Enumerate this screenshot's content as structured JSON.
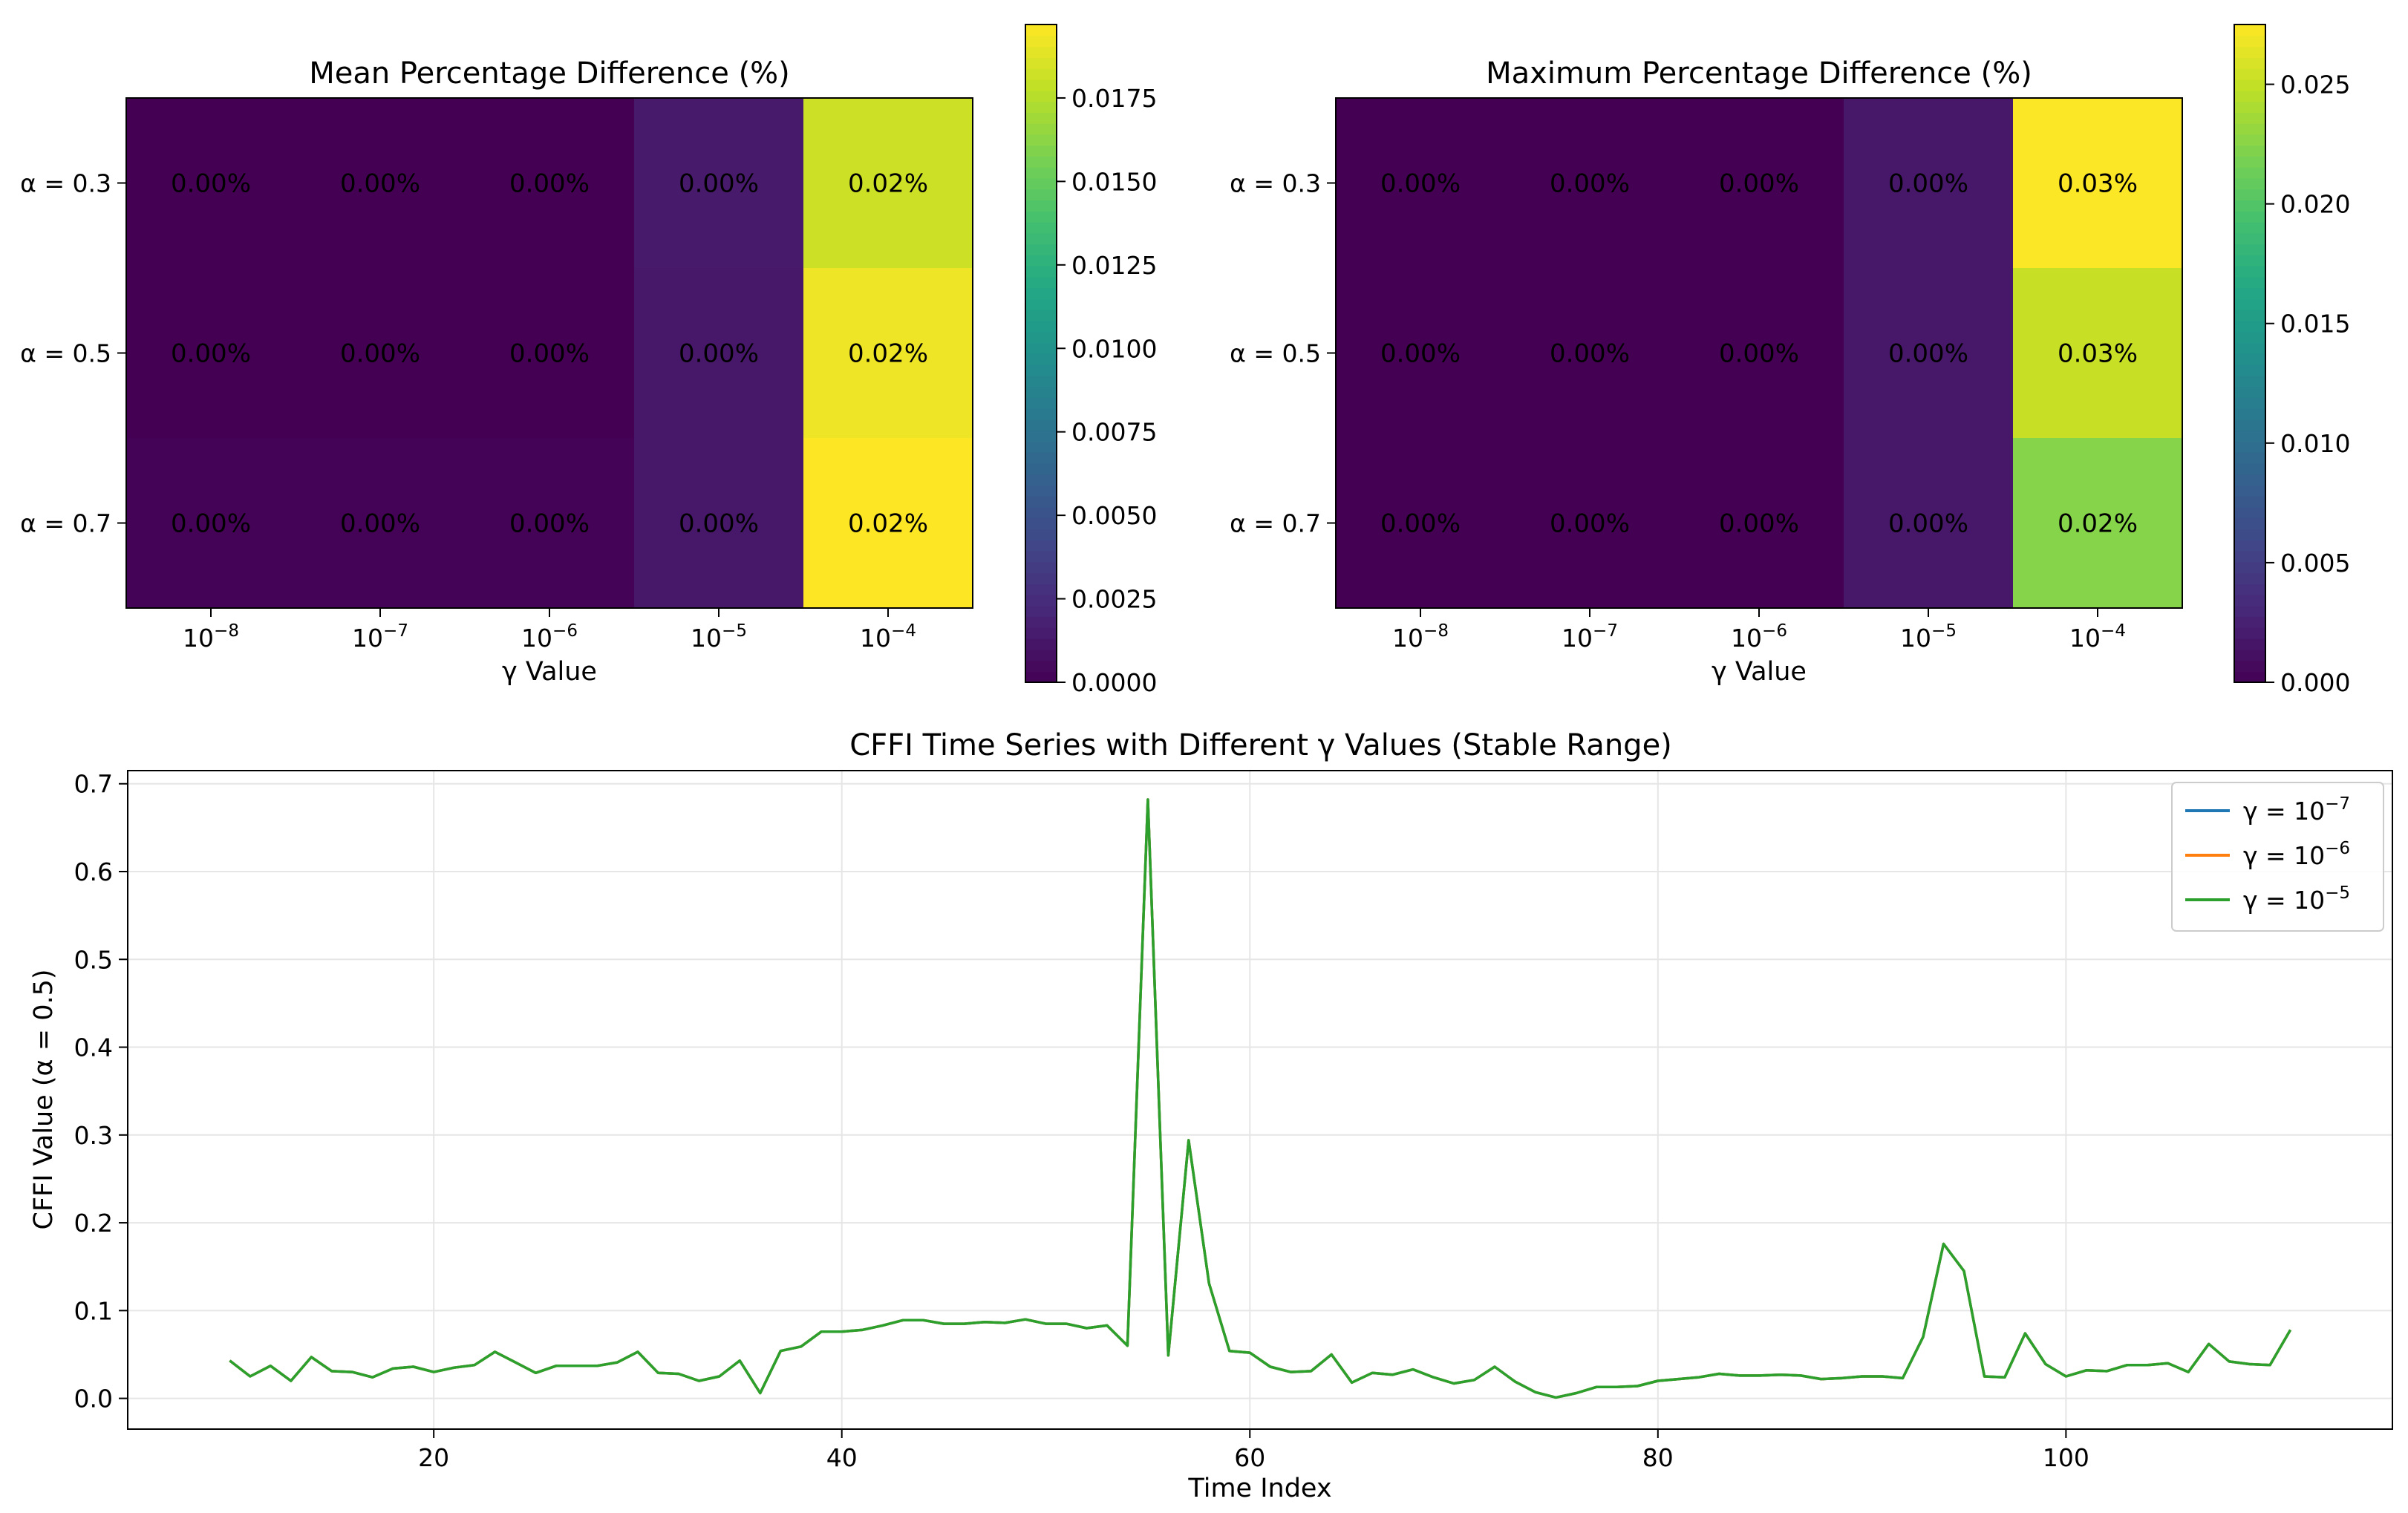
{
  "chart_data": [
    {
      "type": "heatmap",
      "title": "Mean Percentage Difference (%)",
      "xlabel": "γ Value",
      "ylabel": "",
      "x_ticks": [
        {
          "base": "10",
          "exp": "−8"
        },
        {
          "base": "10",
          "exp": "−7"
        },
        {
          "base": "10",
          "exp": "−6"
        },
        {
          "base": "10",
          "exp": "−5"
        },
        {
          "base": "10",
          "exp": "−4"
        }
      ],
      "y_ticks": [
        "α = 0.3",
        "α = 0.5",
        "α = 0.7"
      ],
      "values": [
        [
          0.0,
          0.0,
          0.0,
          0.0014,
          0.0182
        ],
        [
          0.0,
          0.0,
          0.0,
          0.0013,
          0.0192
        ],
        [
          0.0001,
          0.0001,
          0.0001,
          0.0013,
          0.0197
        ]
      ],
      "labels": [
        [
          "0.00%",
          "0.00%",
          "0.00%",
          "0.00%",
          "0.02%"
        ],
        [
          "0.00%",
          "0.00%",
          "0.00%",
          "0.00%",
          "0.02%"
        ],
        [
          "0.00%",
          "0.00%",
          "0.00%",
          "0.00%",
          "0.02%"
        ]
      ],
      "colormap": "viridis",
      "vmin": 0.0,
      "vmax": 0.0197,
      "colorbar_ticks": [
        "0.0000",
        "0.0025",
        "0.0050",
        "0.0075",
        "0.0100",
        "0.0125",
        "0.0150",
        "0.0175"
      ],
      "colorbar_tick_values": [
        0.0,
        0.0025,
        0.005,
        0.0075,
        0.01,
        0.0125,
        0.015,
        0.0175
      ]
    },
    {
      "type": "heatmap",
      "title": "Maximum Percentage Difference (%)",
      "xlabel": "γ Value",
      "ylabel": "",
      "x_ticks": [
        {
          "base": "10",
          "exp": "−8"
        },
        {
          "base": "10",
          "exp": "−7"
        },
        {
          "base": "10",
          "exp": "−6"
        },
        {
          "base": "10",
          "exp": "−5"
        },
        {
          "base": "10",
          "exp": "−4"
        }
      ],
      "y_ticks": [
        "α = 0.3",
        "α = 0.5",
        "α = 0.7"
      ],
      "values": [
        [
          0.0,
          0.0,
          0.0,
          0.0018,
          0.0274
        ],
        [
          0.0,
          0.0,
          0.0,
          0.0018,
          0.0252
        ],
        [
          0.0,
          0.0,
          0.0,
          0.0018,
          0.0225
        ]
      ],
      "labels": [
        [
          "0.00%",
          "0.00%",
          "0.00%",
          "0.00%",
          "0.03%"
        ],
        [
          "0.00%",
          "0.00%",
          "0.00%",
          "0.00%",
          "0.03%"
        ],
        [
          "0.00%",
          "0.00%",
          "0.00%",
          "0.00%",
          "0.02%"
        ]
      ],
      "colormap": "viridis",
      "vmin": 0.0,
      "vmax": 0.0275,
      "colorbar_ticks": [
        "0.000",
        "0.005",
        "0.010",
        "0.015",
        "0.020",
        "0.025"
      ],
      "colorbar_tick_values": [
        0.0,
        0.005,
        0.01,
        0.015,
        0.02,
        0.025
      ]
    },
    {
      "type": "line",
      "title": "CFFI Time Series with Different γ Values (Stable Range)",
      "xlabel": "Time Index",
      "ylabel": "CFFI Value (α = 0.5)",
      "xlim": [
        5,
        116
      ],
      "ylim": [
        -0.035,
        0.715
      ],
      "x_ticks": [
        20,
        40,
        60,
        80,
        100
      ],
      "y_ticks": [
        "0.0",
        "0.1",
        "0.2",
        "0.3",
        "0.4",
        "0.5",
        "0.6",
        "0.7"
      ],
      "y_tick_values": [
        0.0,
        0.1,
        0.2,
        0.3,
        0.4,
        0.5,
        0.6,
        0.7
      ],
      "grid": true,
      "legend_position": "top-right",
      "x": [
        10,
        11,
        12,
        13,
        14,
        15,
        16,
        17,
        18,
        19,
        20,
        21,
        22,
        23,
        24,
        25,
        26,
        27,
        28,
        29,
        30,
        31,
        32,
        33,
        34,
        35,
        36,
        37,
        38,
        39,
        40,
        41,
        42,
        43,
        44,
        45,
        46,
        47,
        48,
        49,
        50,
        51,
        52,
        53,
        54,
        55,
        56,
        57,
        58,
        59,
        60,
        61,
        62,
        63,
        64,
        65,
        66,
        67,
        68,
        69,
        70,
        71,
        72,
        73,
        74,
        75,
        76,
        77,
        78,
        79,
        80,
        81,
        82,
        83,
        84,
        85,
        86,
        87,
        88,
        89,
        90,
        91,
        92,
        93,
        94,
        95,
        96,
        97,
        98,
        99,
        100,
        101,
        102,
        103,
        104,
        105,
        106,
        107,
        108,
        109,
        110,
        111
      ],
      "series": [
        {
          "name": "γ = 10⁻⁷",
          "label_base": "γ = 10",
          "label_exp": "−7",
          "color": "#1f77b4",
          "values": [
            0.043,
            0.025,
            0.037,
            0.02,
            0.047,
            0.031,
            0.03,
            0.024,
            0.034,
            0.036,
            0.03,
            0.035,
            0.038,
            0.053,
            0.041,
            0.029,
            0.037,
            0.037,
            0.037,
            0.041,
            0.053,
            0.029,
            0.028,
            0.02,
            0.025,
            0.043,
            0.006,
            0.054,
            0.059,
            0.076,
            0.076,
            0.078,
            0.083,
            0.089,
            0.089,
            0.085,
            0.085,
            0.087,
            0.086,
            0.09,
            0.085,
            0.085,
            0.08,
            0.083,
            0.06,
            0.682,
            0.049,
            0.294,
            0.131,
            0.054,
            0.052,
            0.036,
            0.03,
            0.031,
            0.05,
            0.018,
            0.029,
            0.027,
            0.033,
            0.024,
            0.017,
            0.021,
            0.036,
            0.019,
            0.007,
            0.001,
            0.006,
            0.013,
            0.013,
            0.014,
            0.02,
            0.022,
            0.024,
            0.028,
            0.026,
            0.026,
            0.027,
            0.026,
            0.022,
            0.023,
            0.025,
            0.025,
            0.023,
            0.07,
            0.176,
            0.145,
            0.025,
            0.024,
            0.074,
            0.039,
            0.025,
            0.032,
            0.031,
            0.038,
            0.038,
            0.04,
            0.03,
            0.062,
            0.042,
            0.039,
            0.038,
            0.078
          ]
        },
        {
          "name": "γ = 10⁻⁶",
          "label_base": "γ = 10",
          "label_exp": "−6",
          "color": "#ff7f0e",
          "values": [
            0.043,
            0.025,
            0.037,
            0.02,
            0.047,
            0.031,
            0.03,
            0.024,
            0.034,
            0.036,
            0.03,
            0.035,
            0.038,
            0.053,
            0.041,
            0.029,
            0.037,
            0.037,
            0.037,
            0.041,
            0.053,
            0.029,
            0.028,
            0.02,
            0.025,
            0.043,
            0.006,
            0.054,
            0.059,
            0.076,
            0.076,
            0.078,
            0.083,
            0.089,
            0.089,
            0.085,
            0.085,
            0.087,
            0.086,
            0.09,
            0.085,
            0.085,
            0.08,
            0.083,
            0.06,
            0.682,
            0.049,
            0.294,
            0.131,
            0.054,
            0.052,
            0.036,
            0.03,
            0.031,
            0.05,
            0.018,
            0.029,
            0.027,
            0.033,
            0.024,
            0.017,
            0.021,
            0.036,
            0.019,
            0.007,
            0.001,
            0.006,
            0.013,
            0.013,
            0.014,
            0.02,
            0.022,
            0.024,
            0.028,
            0.026,
            0.026,
            0.027,
            0.026,
            0.022,
            0.023,
            0.025,
            0.025,
            0.023,
            0.07,
            0.176,
            0.145,
            0.025,
            0.024,
            0.074,
            0.039,
            0.025,
            0.032,
            0.031,
            0.038,
            0.038,
            0.04,
            0.03,
            0.062,
            0.042,
            0.039,
            0.038,
            0.078
          ]
        },
        {
          "name": "γ = 10⁻⁵",
          "label_base": "γ = 10",
          "label_exp": "−5",
          "color": "#2ca02c",
          "values": [
            0.043,
            0.025,
            0.037,
            0.02,
            0.047,
            0.031,
            0.03,
            0.024,
            0.034,
            0.036,
            0.03,
            0.035,
            0.038,
            0.053,
            0.041,
            0.029,
            0.037,
            0.037,
            0.037,
            0.041,
            0.053,
            0.029,
            0.028,
            0.02,
            0.025,
            0.043,
            0.006,
            0.054,
            0.059,
            0.076,
            0.076,
            0.078,
            0.083,
            0.089,
            0.089,
            0.085,
            0.085,
            0.087,
            0.086,
            0.09,
            0.085,
            0.085,
            0.08,
            0.083,
            0.06,
            0.682,
            0.049,
            0.294,
            0.131,
            0.054,
            0.052,
            0.036,
            0.03,
            0.031,
            0.05,
            0.018,
            0.029,
            0.027,
            0.033,
            0.024,
            0.017,
            0.021,
            0.036,
            0.019,
            0.007,
            0.001,
            0.006,
            0.013,
            0.013,
            0.014,
            0.02,
            0.022,
            0.024,
            0.028,
            0.026,
            0.026,
            0.027,
            0.026,
            0.022,
            0.023,
            0.025,
            0.025,
            0.023,
            0.07,
            0.176,
            0.145,
            0.025,
            0.024,
            0.074,
            0.039,
            0.025,
            0.032,
            0.031,
            0.038,
            0.038,
            0.04,
            0.03,
            0.062,
            0.042,
            0.039,
            0.038,
            0.078
          ]
        }
      ]
    }
  ]
}
